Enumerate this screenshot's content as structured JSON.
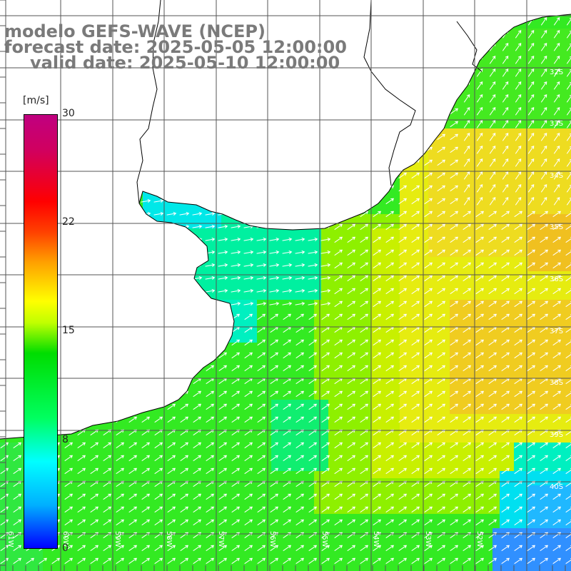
{
  "title": {
    "model": "modelo GEFS-WAVE (NCEP)",
    "forecast": "forecast date: 2025-05-05 12:00:00",
    "valid": "valid date: 2025-05-10 12:00:00"
  },
  "colorbar": {
    "unit": "[m/s]",
    "ticks": [
      "30",
      "22",
      "15",
      "8",
      "0"
    ],
    "colors": [
      "#0000ff",
      "#00ffff",
      "#00dd00",
      "#ffff00",
      "#ff0000",
      "#c00080"
    ]
  },
  "latitude_labels": [
    "32S",
    "33S",
    "34S",
    "35S",
    "36S",
    "37S",
    "38S",
    "39S",
    "40S"
  ],
  "longitude_labels": [
    "61W",
    "60W",
    "59W",
    "58W",
    "57W",
    "56W",
    "55W",
    "54W",
    "53W",
    "52W"
  ],
  "colors": {
    "land": "#ffffff",
    "coast": "#000000",
    "grid": "#555555",
    "arrows": "#ffffff",
    "title_text": "#7a7a7a"
  }
}
